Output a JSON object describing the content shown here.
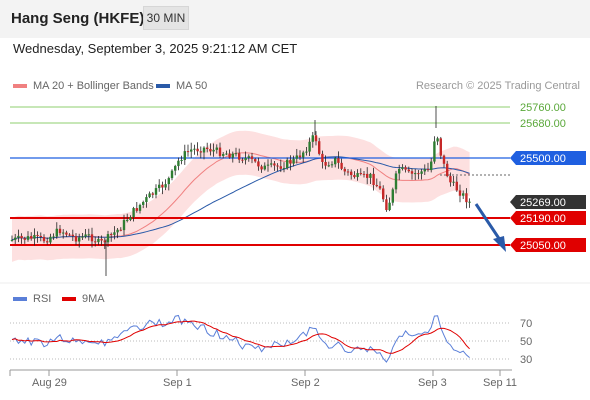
{
  "header": {
    "title": "Hang Seng (HKFE)",
    "timeframe": "30 MIN",
    "datetime": "Wednesday, September 3, 2025 9:21:12 AM CET"
  },
  "legend": {
    "ma20": "MA 20 + Bollinger Bands",
    "ma50": "MA 50",
    "credit": "Research © 2025 Trading Central",
    "rsi": "RSI",
    "rsi_ma": "9MA"
  },
  "colors": {
    "ma20": "#f08080",
    "ma50": "#2a5aa8",
    "green_line": "#8fcf6f",
    "blue_line": "#1f5fe0",
    "red_line": "#e00000",
    "rsi": "#5a7fd8",
    "rsi_ma": "#e00000",
    "band": "#fde0e0",
    "candle": "#2e7d32"
  },
  "chart_data": [
    {
      "type": "candlestick",
      "title": "",
      "price_levels": [
        {
          "value": "25760.00",
          "style": "resistance-green"
        },
        {
          "value": "25680.00",
          "style": "resistance-green"
        },
        {
          "value": "25500.00",
          "style": "pivot-blue"
        },
        {
          "value": "25269.00",
          "style": "last-price"
        },
        {
          "value": "25190.00",
          "style": "support-red"
        },
        {
          "value": "25050.00",
          "style": "support-red"
        }
      ],
      "x_ticks": [
        "Aug 29",
        "Sep 1",
        "Sep 2",
        "Sep 3",
        "Sep 11"
      ],
      "ylim": [
        24880,
        25800
      ],
      "forecast_arrow": {
        "from": 25230,
        "to": 25060
      }
    },
    {
      "type": "line",
      "title": "",
      "y_ticks": [
        "70",
        "50",
        "30"
      ],
      "ylim": [
        20,
        80
      ]
    }
  ]
}
